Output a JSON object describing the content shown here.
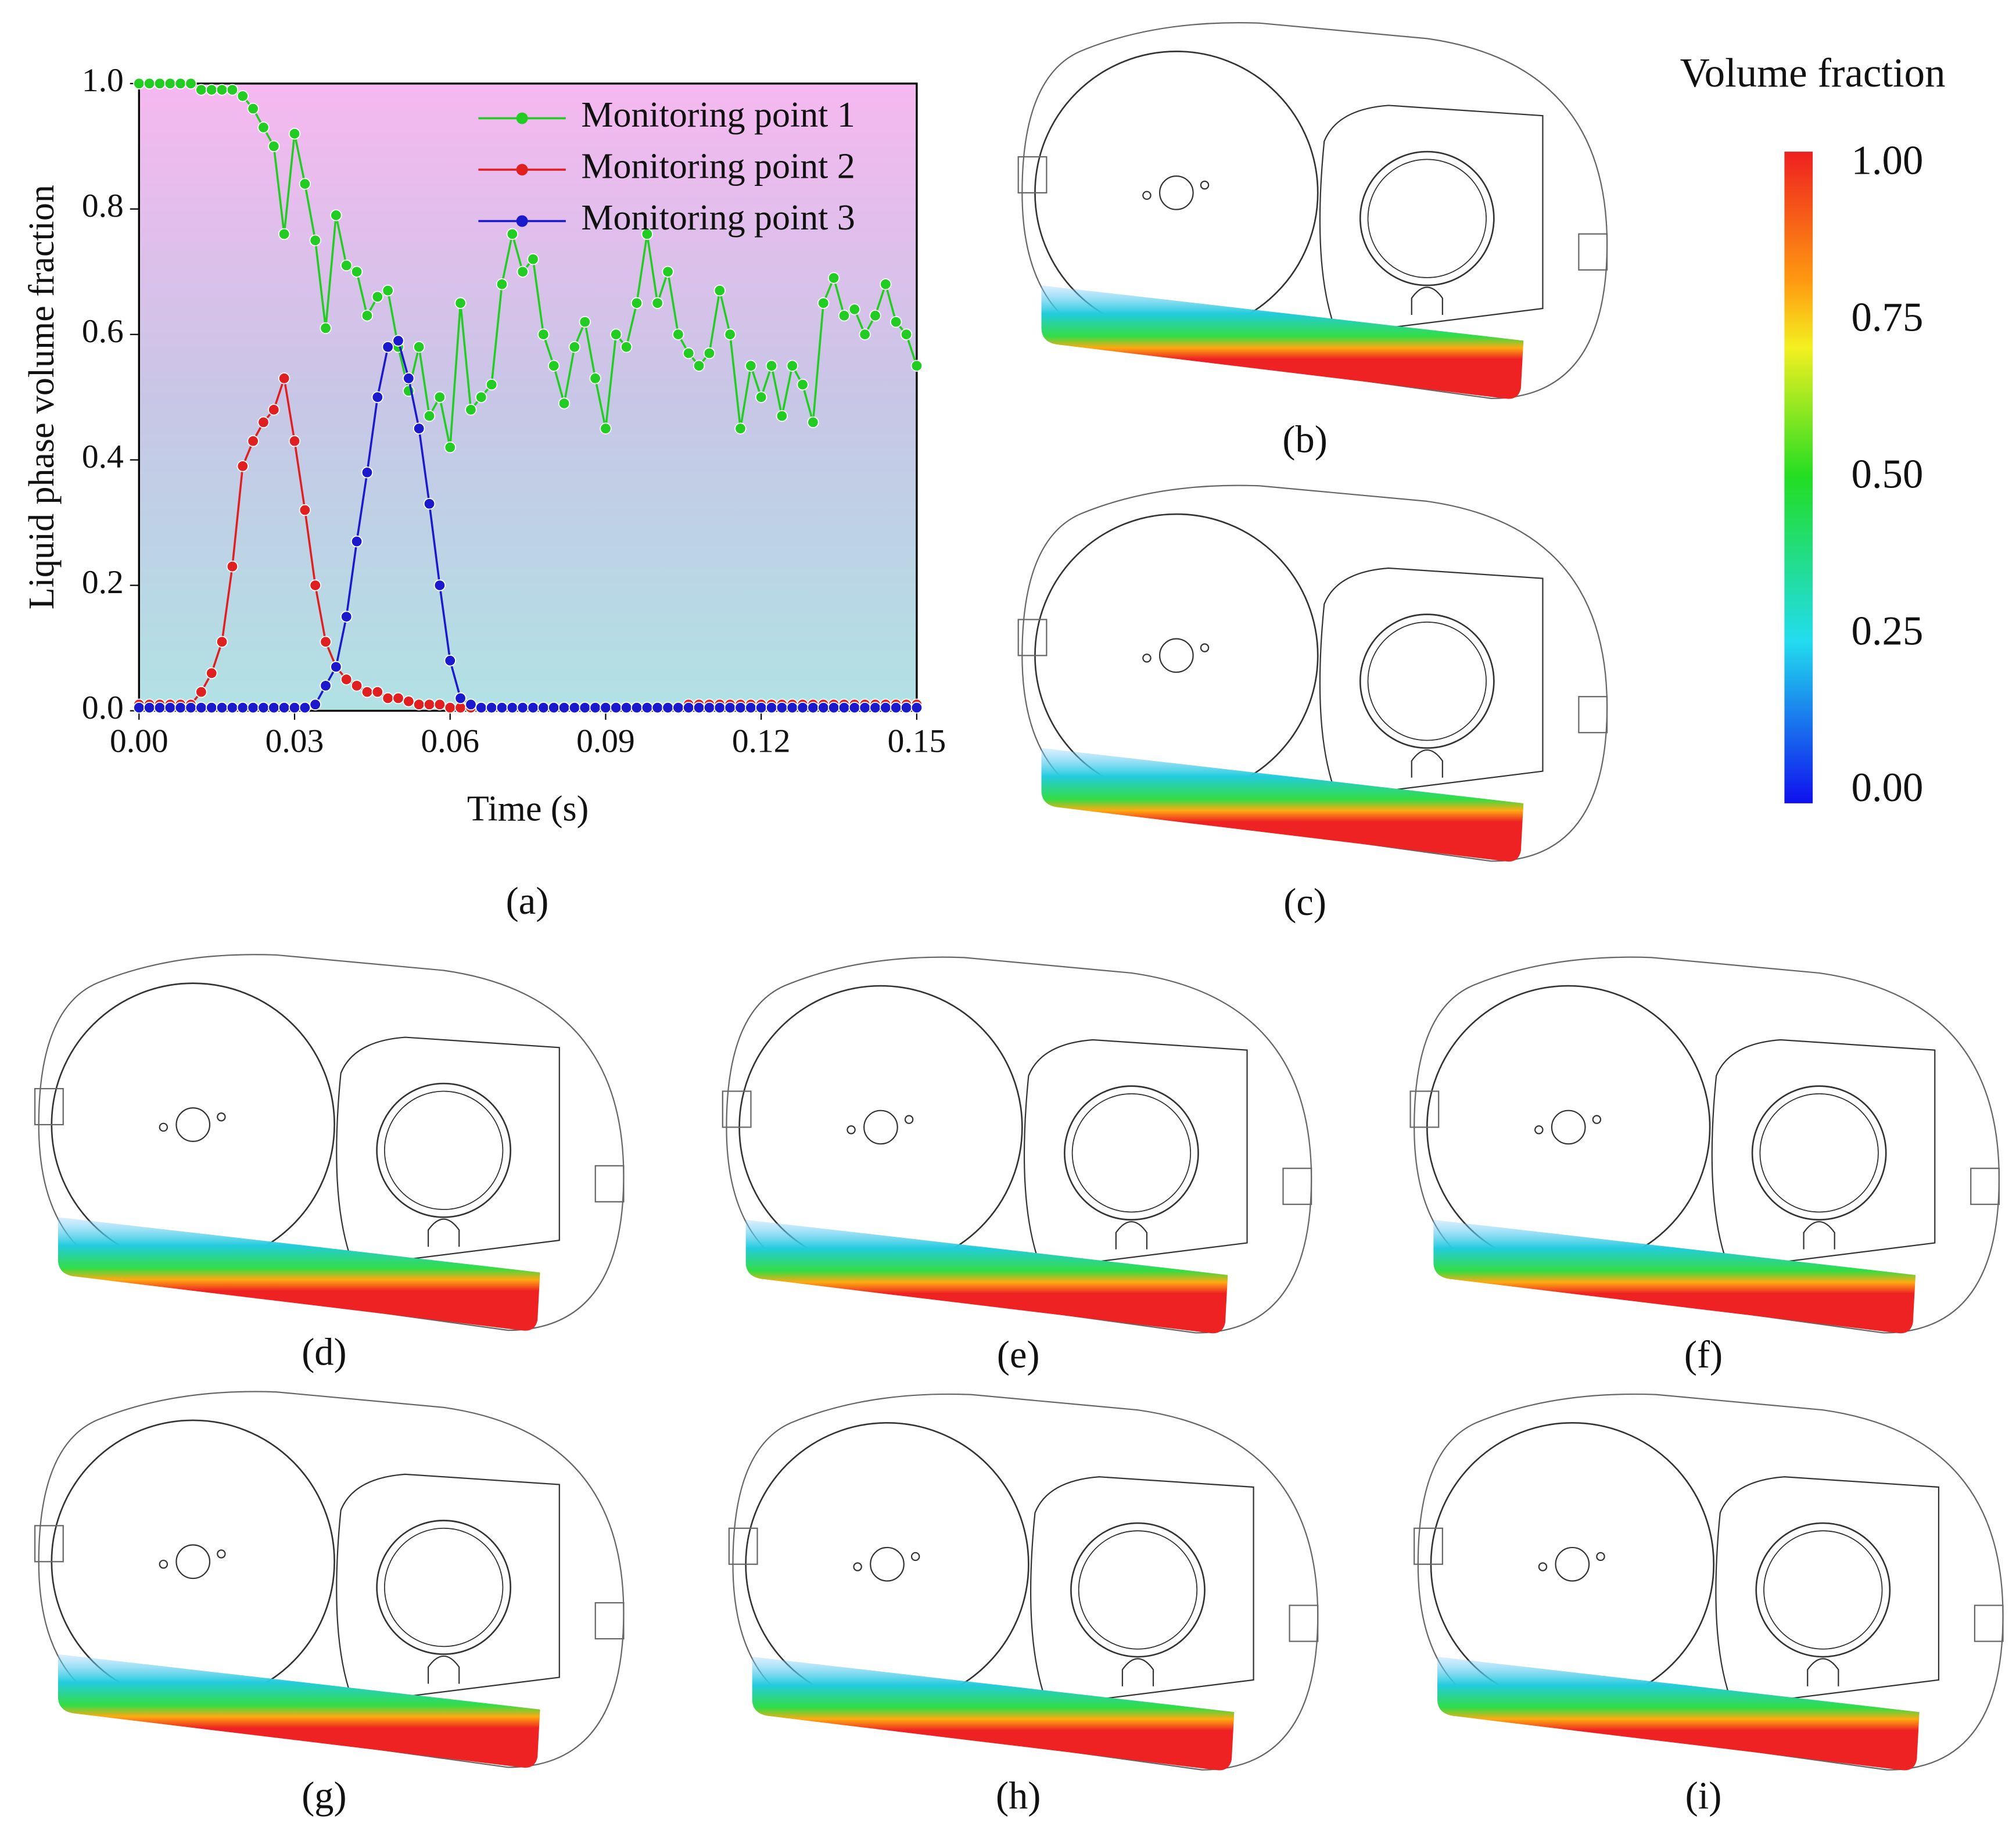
{
  "chart_data": {
    "type": "line",
    "xlabel": "Time (s)",
    "ylabel": "Liquid phase volume fraction",
    "panel": "(a)",
    "x": [
      0,
      0.002,
      0.004,
      0.006,
      0.008,
      0.01,
      0.012,
      0.014,
      0.016,
      0.018,
      0.02,
      0.022,
      0.024,
      0.026,
      0.028,
      0.03,
      0.032,
      0.034,
      0.036,
      0.038,
      0.04,
      0.042,
      0.044,
      0.046,
      0.048,
      0.05,
      0.052,
      0.054,
      0.056,
      0.058,
      0.06,
      0.062,
      0.064,
      0.066,
      0.068,
      0.07,
      0.072,
      0.074,
      0.076,
      0.078,
      0.08,
      0.082,
      0.084,
      0.086,
      0.088,
      0.09,
      0.092,
      0.094,
      0.096,
      0.098,
      0.1,
      0.102,
      0.104,
      0.106,
      0.108,
      0.11,
      0.112,
      0.114,
      0.116,
      0.118,
      0.12,
      0.122,
      0.124,
      0.126,
      0.128,
      0.13,
      0.132,
      0.134,
      0.136,
      0.138,
      0.14,
      0.142,
      0.144,
      0.146,
      0.148,
      0.15
    ],
    "series": [
      {
        "name": "Monitoring point 1",
        "color": "#22cc22",
        "values": [
          1,
          1,
          1,
          1,
          1,
          1,
          0.99,
          0.99,
          0.99,
          0.99,
          0.98,
          0.96,
          0.93,
          0.9,
          0.76,
          0.92,
          0.84,
          0.75,
          0.61,
          0.79,
          0.71,
          0.7,
          0.63,
          0.66,
          0.67,
          0.58,
          0.51,
          0.58,
          0.47,
          0.5,
          0.42,
          0.65,
          0.48,
          0.5,
          0.52,
          0.68,
          0.76,
          0.7,
          0.72,
          0.6,
          0.55,
          0.49,
          0.58,
          0.62,
          0.53,
          0.45,
          0.6,
          0.58,
          0.65,
          0.76,
          0.65,
          0.7,
          0.6,
          0.57,
          0.55,
          0.57,
          0.67,
          0.6,
          0.45,
          0.55,
          0.5,
          0.55,
          0.47,
          0.55,
          0.52,
          0.46,
          0.65,
          0.69,
          0.63,
          0.64,
          0.6,
          0.63,
          0.68,
          0.62,
          0.6,
          0.55
        ]
      },
      {
        "name": "Monitoring point 2",
        "color": "#e02020",
        "values": [
          0.01,
          0.01,
          0.01,
          0.01,
          0.01,
          0.01,
          0.03,
          0.06,
          0.11,
          0.23,
          0.39,
          0.43,
          0.46,
          0.48,
          0.53,
          0.43,
          0.32,
          0.2,
          0.11,
          0.07,
          0.05,
          0.04,
          0.03,
          0.03,
          0.02,
          0.02,
          0.015,
          0.01,
          0.01,
          0.01,
          0.005,
          0.005,
          0.005,
          0.005,
          0.005,
          0.005,
          0.005,
          0.005,
          0.005,
          0.005,
          0.005,
          0.005,
          0.005,
          0.005,
          0.005,
          0.005,
          0.005,
          0.005,
          0.005,
          0.005,
          0.005,
          0.005,
          0.005,
          0.01,
          0.01,
          0.01,
          0.01,
          0.01,
          0.01,
          0.01,
          0.01,
          0.01,
          0.01,
          0.01,
          0.01,
          0.01,
          0.01,
          0.01,
          0.01,
          0.01,
          0.01,
          0.01,
          0.01,
          0.01,
          0.01,
          0.01
        ]
      },
      {
        "name": "Monitoring point 3",
        "color": "#1a1acc",
        "values": [
          0.005,
          0.005,
          0.005,
          0.005,
          0.005,
          0.005,
          0.005,
          0.005,
          0.005,
          0.005,
          0.005,
          0.005,
          0.005,
          0.005,
          0.005,
          0.005,
          0.005,
          0.01,
          0.04,
          0.07,
          0.15,
          0.27,
          0.38,
          0.5,
          0.58,
          0.59,
          0.53,
          0.45,
          0.33,
          0.2,
          0.08,
          0.02,
          0.01,
          0.005,
          0.005,
          0.005,
          0.005,
          0.005,
          0.005,
          0.005,
          0.005,
          0.005,
          0.005,
          0.005,
          0.005,
          0.005,
          0.005,
          0.005,
          0.005,
          0.005,
          0.005,
          0.005,
          0.005,
          0.005,
          0.005,
          0.005,
          0.005,
          0.005,
          0.005,
          0.005,
          0.005,
          0.005,
          0.005,
          0.005,
          0.005,
          0.005,
          0.005,
          0.005,
          0.005,
          0.005,
          0.005,
          0.005,
          0.005,
          0.005,
          0.005,
          0.005
        ]
      }
    ],
    "xlim": [
      0,
      0.15
    ],
    "xticks": [
      {
        "value": 0,
        "label": "0.00"
      },
      {
        "value": 0.03,
        "label": "0.03"
      },
      {
        "value": 0.06,
        "label": "0.06"
      },
      {
        "value": 0.09,
        "label": "0.09"
      },
      {
        "value": 0.12,
        "label": "0.12"
      },
      {
        "value": 0.15,
        "label": "0.15"
      }
    ],
    "ylim": [
      0,
      1
    ],
    "yticks": [
      {
        "value": 0,
        "label": "0.0"
      },
      {
        "value": 0.2,
        "label": "0.2"
      },
      {
        "value": 0.4,
        "label": "0.4"
      },
      {
        "value": 0.6,
        "label": "0.6"
      },
      {
        "value": 0.8,
        "label": "0.8"
      },
      {
        "value": 1,
        "label": "1.0"
      }
    ],
    "legend": "upper right"
  },
  "colorbar": {
    "title": "Volume fraction",
    "ticks": [
      "1.00",
      "0.75",
      "0.50",
      "0.25",
      "0.00"
    ]
  },
  "panels": [
    "(b)",
    "(c)",
    "(d)",
    "(e)",
    "(f)",
    "(g)",
    "(h)",
    "(i)"
  ]
}
